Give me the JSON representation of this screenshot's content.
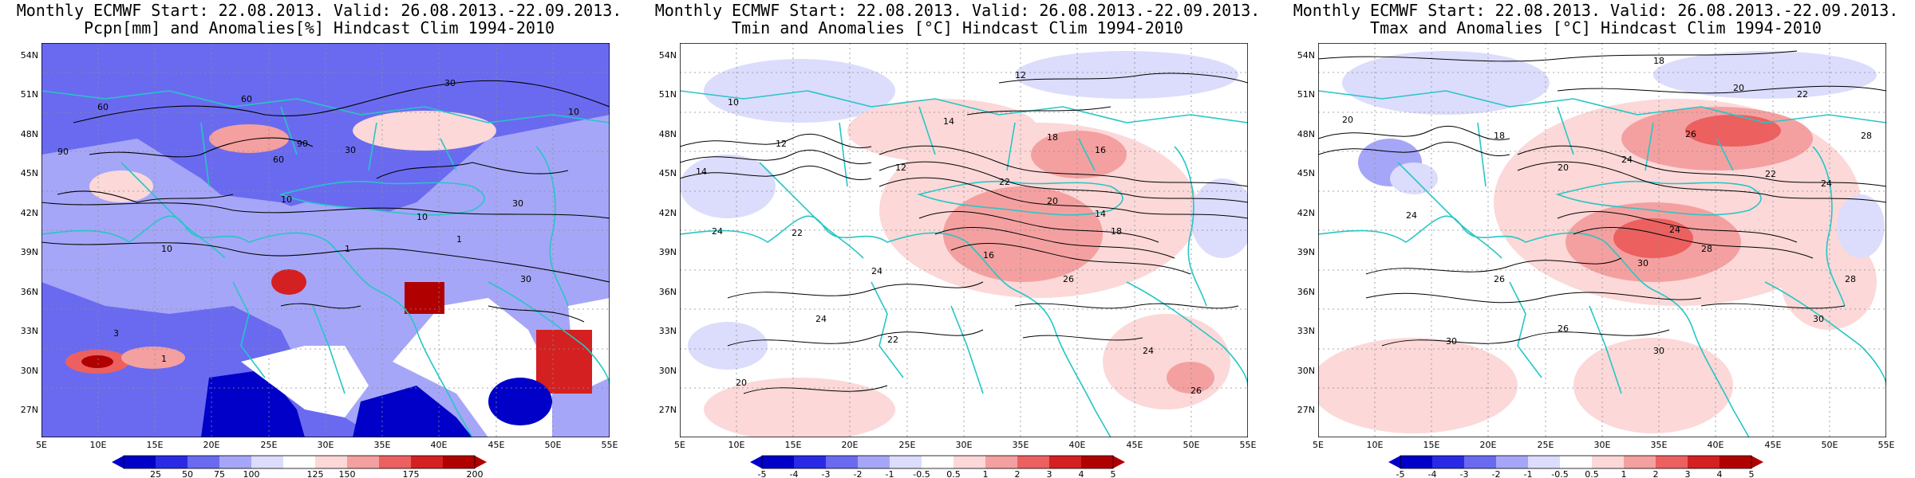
{
  "panels": [
    {
      "title1": "Monthly ECMWF Start: 22.08.2013. Valid: 26.08.2013.-22.09.2013.",
      "title2": "Pcpn[mm] and Anomalies[%] Hindcast Clim 1994-2010",
      "colorbar": {
        "ticks": [
          "25",
          "50",
          "75",
          "100",
          "125",
          "150",
          "175",
          "200"
        ],
        "colors": [
          "#0000c8",
          "#2a2ae6",
          "#6a6af0",
          "#a6a6f8",
          "#dcdcfc",
          "#ffffff",
          "#fcd8d8",
          "#f4a0a0",
          "#ec6060",
          "#d42020",
          "#b00000"
        ]
      },
      "contour_labels": [
        "10",
        "30",
        "60",
        "90",
        "1",
        "3"
      ]
    },
    {
      "title1": "Monthly ECMWF Start: 22.08.2013. Valid: 26.08.2013.-22.09.2013.",
      "title2": "Tmin and Anomalies [°C] Hindcast Clim 1994-2010",
      "colorbar": {
        "ticks": [
          "-5",
          "-4",
          "-3",
          "-2",
          "-1",
          "-0.5",
          "0.5",
          "1",
          "2",
          "3",
          "4",
          "5"
        ],
        "colors": [
          "#0000c8",
          "#2a2ae6",
          "#6a6af0",
          "#a6a6f8",
          "#dcdcfc",
          "#ffffff",
          "#fcd8d8",
          "#f4a0a0",
          "#ec6060",
          "#d42020",
          "#b00000"
        ]
      },
      "contour_labels": [
        "10",
        "12",
        "14",
        "16",
        "18",
        "20",
        "22",
        "24",
        "26"
      ]
    },
    {
      "title1": "Monthly ECMWF Start: 22.08.2013. Valid: 26.08.2013.-22.09.2013.",
      "title2": "Tmax and Anomalies [°C] Hindcast Clim 1994-2010",
      "colorbar": {
        "ticks": [
          "-5",
          "-4",
          "-3",
          "-2",
          "-1",
          "-0.5",
          "0.5",
          "1",
          "2",
          "3",
          "4",
          "5"
        ],
        "colors": [
          "#0000c8",
          "#2a2ae6",
          "#6a6af0",
          "#a6a6f8",
          "#dcdcfc",
          "#ffffff",
          "#fcd8d8",
          "#f4a0a0",
          "#ec6060",
          "#d42020",
          "#b00000"
        ]
      },
      "contour_labels": [
        "18",
        "20",
        "22",
        "24",
        "26",
        "28",
        "30"
      ]
    }
  ],
  "lat_labels": [
    "54N",
    "51N",
    "48N",
    "45N",
    "42N",
    "39N",
    "36N",
    "33N",
    "30N",
    "27N"
  ],
  "lon_labels": [
    "5E",
    "10E",
    "15E",
    "20E",
    "25E",
    "30E",
    "35E",
    "40E",
    "45E",
    "50E",
    "55E"
  ],
  "colors": {
    "coast": "#26c6c6",
    "contour": "#000000",
    "grid": "#8c8c8c"
  }
}
